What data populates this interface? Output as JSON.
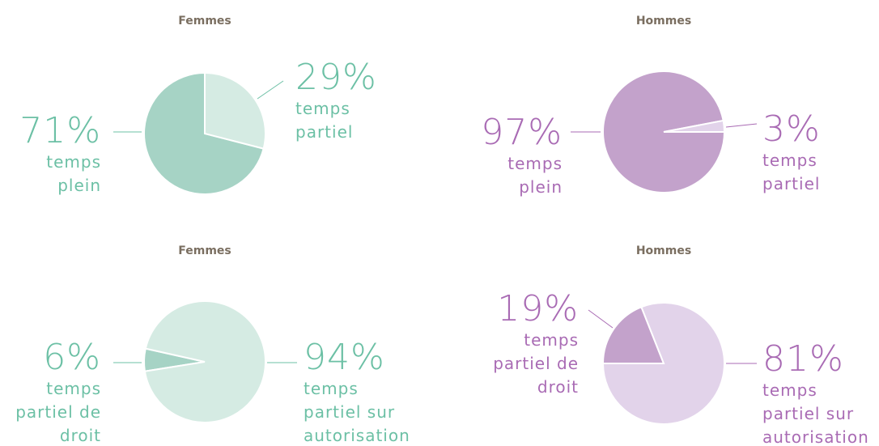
{
  "chart_data": [
    {
      "type": "pie",
      "title": "Femmes",
      "categories": [
        "temps plein",
        "temps partiel"
      ],
      "values": [
        71,
        29
      ],
      "value_labels": [
        "71%",
        "29%"
      ],
      "colors": [
        "#a6d3c5",
        "#d5ebe3"
      ],
      "label_color": "#6cc0a5"
    },
    {
      "type": "pie",
      "title": "Hommes",
      "categories": [
        "temps plein",
        "temps partiel"
      ],
      "values": [
        97,
        3
      ],
      "value_labels": [
        "97%",
        "3%"
      ],
      "colors": [
        "#c3a2cb",
        "#e2d3ea"
      ],
      "label_color": "#a96bb4"
    },
    {
      "type": "pie",
      "title": "Femmes",
      "categories": [
        "temps partiel de droit",
        "temps partiel sur autorisation"
      ],
      "values": [
        6,
        94
      ],
      "value_labels": [
        "6%",
        "94%"
      ],
      "colors": [
        "#a6d3c5",
        "#d5ebe3"
      ],
      "label_color": "#6cc0a5"
    },
    {
      "type": "pie",
      "title": "Hommes",
      "categories": [
        "temps partiel de droit",
        "temps partiel sur autorisation"
      ],
      "values": [
        19,
        81
      ],
      "value_labels": [
        "19%",
        "81%"
      ],
      "colors": [
        "#c3a2cb",
        "#e2d3ea"
      ],
      "label_color": "#a96bb4"
    }
  ]
}
